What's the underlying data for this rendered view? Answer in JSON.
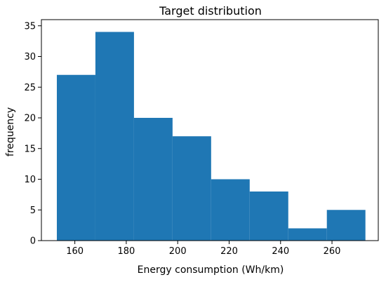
{
  "chart_data": {
    "type": "bar",
    "subtype": "histogram",
    "title": "Target distribution",
    "xlabel": "Energy consumption (Wh/km)",
    "ylabel": "frequency",
    "xlim": [
      147,
      278
    ],
    "ylim": [
      0,
      36
    ],
    "xticks": [
      160,
      180,
      200,
      220,
      240,
      260
    ],
    "yticks": [
      0,
      5,
      10,
      15,
      20,
      25,
      30,
      35
    ],
    "bin_edges": [
      153,
      168,
      183,
      198,
      213,
      228,
      243,
      258,
      273
    ],
    "values": [
      27,
      34,
      20,
      17,
      10,
      8,
      2,
      5
    ],
    "bar_color": "#1f77b4",
    "grid": false,
    "legend": false
  }
}
